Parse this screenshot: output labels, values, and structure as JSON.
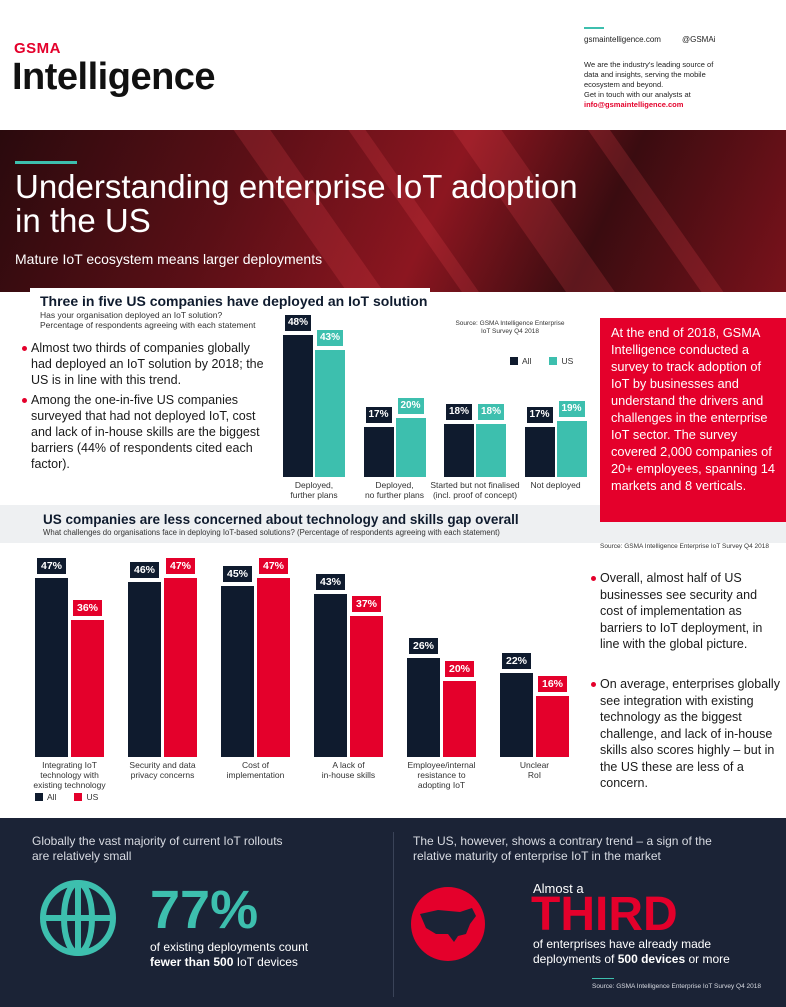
{
  "header": {
    "logo_top": "GSMA",
    "logo_main": "Intelligence",
    "website": "gsmaintelligence.com",
    "twitter": "@GSMAi",
    "blurb": "We are the industry's leading source of\ndata and insights, serving the mobile\necosystem and beyond.\nGet in touch with our analysts at",
    "email": "info@gsmaintelligence.com"
  },
  "hero": {
    "title": "Understanding enterprise IoT adoption\nin the US",
    "subtitle": "Mature IoT ecosystem means larger deployments"
  },
  "section1": {
    "bullets": [
      "Almost two thirds of companies globally had deployed an IoT solution by 2018; the US is in line with this trend.",
      "Among the one-in-five US companies surveyed that had not deployed IoT, cost and lack of in-house skills are the biggest barriers (44% of respondents cited each factor)."
    ],
    "sidebar": "At the end of 2018, GSMA Intelligence conducted a survey to track adoption of IoT by businesses and understand the drivers and challenges in the enterprise IoT sector. The survey covered 2,000 companies of 20+ employees, spanning 14 markets and 8 verticals."
  },
  "chart_data": [
    {
      "type": "bar",
      "title": "Three in five US companies have deployed an IoT solution",
      "subtitle": "Has your organisation deployed an IoT solution?\nPercentage of respondents agreeing with each statement",
      "source": "Source: GSMA Intelligence Enterprise\nIoT Survey Q4 2018",
      "categories": [
        "Deployed,\nfurther plans",
        "Deployed,\nno further plans",
        "Started but not finalised\n(incl. proof of concept)",
        "Not deployed"
      ],
      "series": [
        {
          "name": "All",
          "color": "#0f1b2e",
          "values": [
            48,
            17,
            18,
            17
          ],
          "value_labels": [
            "48%",
            "17%",
            "18%",
            "17%"
          ]
        },
        {
          "name": "US",
          "color": "#3dbfae",
          "values": [
            43,
            20,
            18,
            19
          ],
          "value_labels": [
            "43%",
            "20%",
            "18%",
            "19%"
          ]
        }
      ],
      "legend": "upper right"
    },
    {
      "type": "bar",
      "title": "US companies are less concerned about technology and skills gap overall",
      "subtitle": "What challenges do organisations face in deploying IoT-based solutions? (Percentage of respondents agreeing with each statement)",
      "source": "Source: GSMA Intelligence Enterprise IoT Survey Q4 2018",
      "categories": [
        "Integrating IoT\ntechnology with\nexisting technology",
        "Security and data\nprivacy concerns",
        "Cost of\nimplementation",
        "A lack of\nin-house skills",
        "Employee/internal\nresistance to\nadopting IoT",
        "Unclear\nRoI"
      ],
      "series": [
        {
          "name": "All",
          "color": "#0f1b2e",
          "values": [
            47,
            46,
            45,
            43,
            26,
            22
          ],
          "value_labels": [
            "47%",
            "46%",
            "45%",
            "43%",
            "26%",
            "22%"
          ]
        },
        {
          "name": "US",
          "color": "#e4002b",
          "values": [
            36,
            47,
            47,
            37,
            20,
            16
          ],
          "value_labels": [
            "36%",
            "47%",
            "47%",
            "37%",
            "20%",
            "16%"
          ]
        }
      ],
      "legend": "lower left"
    }
  ],
  "section2": {
    "bullets": [
      "Overall, almost half of US businesses see security and cost of implementation as barriers to IoT deployment, in line with the global picture.",
      "On average, enterprises globally see integration with existing technology as the biggest challenge, and lack of in-house skills also scores highly – but in the US these are less of a concern."
    ]
  },
  "footer": {
    "left_intro": "Globally the vast majority of current IoT rollouts\nare relatively small",
    "left_stat": "77%",
    "left_line1": "of existing deployments count",
    "left_bold": "fewer than 500",
    "left_tail": "IoT devices",
    "right_intro": "The US, however, shows a contrary trend – a sign of the\nrelative maturity of enterprise IoT in the market",
    "right_pre": "Almost a",
    "right_stat": "THIRD",
    "right_line1": "of enterprises have already made",
    "right_lead": "deployments of",
    "right_bold": "500 devices",
    "right_tail": "or more",
    "source": "Source: GSMA Intelligence Enterprise IoT Survey Q4 2018"
  }
}
